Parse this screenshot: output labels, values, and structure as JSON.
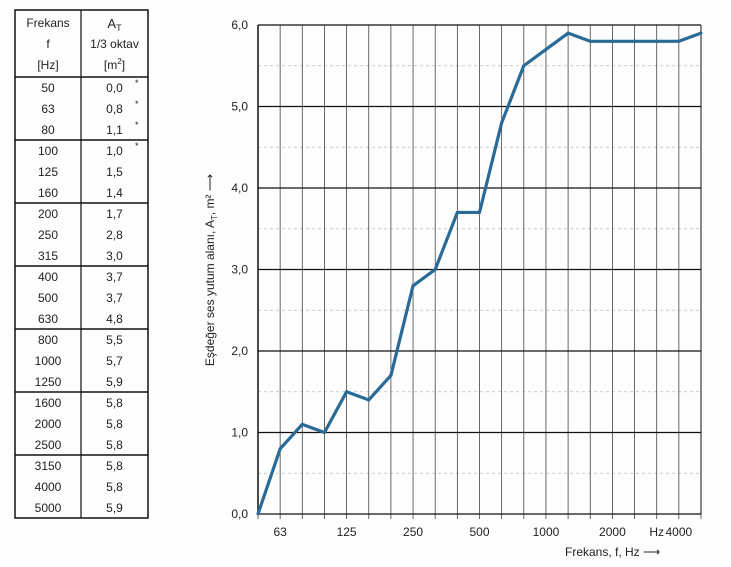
{
  "table": {
    "header": {
      "col1": [
        "Frekans",
        "f",
        "[Hz]"
      ],
      "col2_symbol": "A",
      "col2_sub": "T",
      "col2_line2": "1/3 oktav",
      "col2_unit": "[m",
      "col2_unit_sup": "2",
      "col2_unit_end": "]"
    },
    "rows": [
      {
        "f": "50",
        "a": "0,0",
        "mark": "*"
      },
      {
        "f": "63",
        "a": "0,8",
        "mark": "*"
      },
      {
        "f": "80",
        "a": "1,1",
        "mark": "*"
      },
      {
        "f": "100",
        "a": "1,0",
        "mark": "*"
      },
      {
        "f": "125",
        "a": "1,5",
        "mark": ""
      },
      {
        "f": "160",
        "a": "1,4",
        "mark": ""
      },
      {
        "f": "200",
        "a": "1,7",
        "mark": ""
      },
      {
        "f": "250",
        "a": "2,8",
        "mark": ""
      },
      {
        "f": "315",
        "a": "3,0",
        "mark": ""
      },
      {
        "f": "400",
        "a": "3,7",
        "mark": ""
      },
      {
        "f": "500",
        "a": "3,7",
        "mark": ""
      },
      {
        "f": "630",
        "a": "4,8",
        "mark": ""
      },
      {
        "f": "800",
        "a": "5,5",
        "mark": ""
      },
      {
        "f": "1000",
        "a": "5,7",
        "mark": ""
      },
      {
        "f": "1250",
        "a": "5,9",
        "mark": ""
      },
      {
        "f": "1600",
        "a": "5,8",
        "mark": ""
      },
      {
        "f": "2000",
        "a": "5,8",
        "mark": ""
      },
      {
        "f": "2500",
        "a": "5,8",
        "mark": ""
      },
      {
        "f": "3150",
        "a": "5,8",
        "mark": ""
      },
      {
        "f": "4000",
        "a": "5,8",
        "mark": ""
      },
      {
        "f": "5000",
        "a": "5,9",
        "mark": ""
      }
    ]
  },
  "chart_data": {
    "type": "line",
    "x": [
      50,
      63,
      80,
      100,
      125,
      160,
      200,
      250,
      315,
      400,
      500,
      630,
      800,
      1000,
      1250,
      1600,
      2000,
      2500,
      3150,
      4000,
      5000
    ],
    "series": [
      {
        "name": "A_T",
        "values": [
          0.0,
          0.8,
          1.1,
          1.0,
          1.5,
          1.4,
          1.7,
          2.8,
          3.0,
          3.7,
          3.7,
          4.8,
          5.5,
          5.7,
          5.9,
          5.8,
          5.8,
          5.8,
          5.8,
          5.8,
          5.9
        ],
        "color": "#2a6a96"
      }
    ],
    "ylabel": "Eşdeğer ses yutum alanı, A",
    "ylabel_sub": "T",
    "ylabel_unit": ",  m²",
    "ylabel_arrow": "⟶",
    "xlabel": "Frekans, f, Hz",
    "xlabel_arrow": "⟶",
    "ylim": [
      0,
      6
    ],
    "yticks": [
      "0,0",
      "1,0",
      "2,0",
      "3,0",
      "4,0",
      "5,0",
      "6,0"
    ],
    "xticks": [
      {
        "label": "63",
        "at": 63
      },
      {
        "label": "125",
        "at": 125
      },
      {
        "label": "250",
        "at": 250
      },
      {
        "label": "500",
        "at": 500
      },
      {
        "label": "1000",
        "at": 1000
      },
      {
        "label": "2000",
        "at": 2000
      },
      {
        "label": "Hz",
        "at": 3150
      },
      {
        "label": "4000",
        "at": 4000
      }
    ],
    "x_scale": "log (1/3 octave bands)",
    "grid": true
  }
}
